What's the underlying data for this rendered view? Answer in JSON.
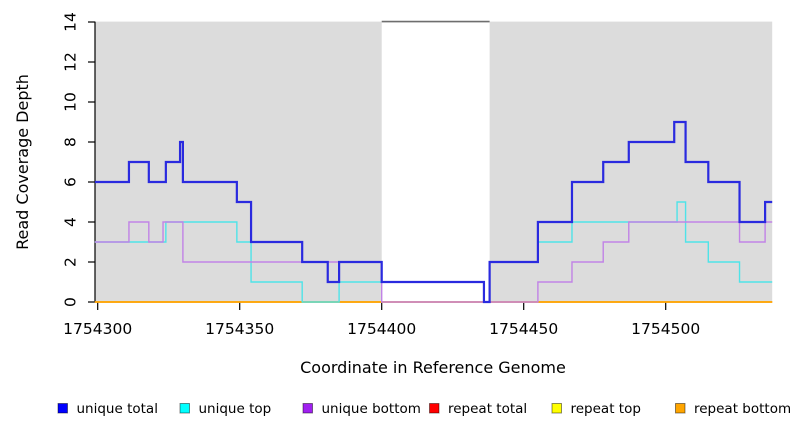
{
  "chart_data": {
    "type": "line",
    "subtype": "step-after-coverage",
    "title": "",
    "xlabel": "Coordinate in Reference Genome",
    "ylabel": "Read Coverage Depth",
    "xlim": [
      1754299,
      1754537.5
    ],
    "ylim": [
      0,
      14
    ],
    "x_ticks": [
      1754300,
      1754350,
      1754400,
      1754450,
      1754500
    ],
    "y_ticks": [
      0,
      2,
      4,
      6,
      8,
      10,
      12,
      14
    ],
    "grid": false,
    "legend_position": "bottom",
    "background_shading": {
      "color": "#dcdcdc",
      "regions": [
        [
          1754299,
          1754400
        ],
        [
          1754438,
          1754537.5
        ]
      ],
      "gap_top_line": {
        "y": 14,
        "from": 1754400,
        "to": 1754438,
        "color": "#6e6e6e"
      }
    },
    "series": [
      {
        "name": "unique total",
        "color": "#0000FF",
        "line_color": "#2a2adf",
        "line_width": 2.2,
        "points": [
          [
            1754299,
            6
          ],
          [
            1754311,
            7
          ],
          [
            1754318,
            6
          ],
          [
            1754324,
            7
          ],
          [
            1754329,
            8
          ],
          [
            1754330,
            6
          ],
          [
            1754349,
            5
          ],
          [
            1754354,
            3
          ],
          [
            1754372,
            2
          ],
          [
            1754381,
            1
          ],
          [
            1754385,
            2
          ],
          [
            1754400,
            1
          ],
          [
            1754436,
            0
          ],
          [
            1754438,
            2
          ],
          [
            1754455,
            4
          ],
          [
            1754467,
            6
          ],
          [
            1754478,
            7
          ],
          [
            1754487,
            8
          ],
          [
            1754503,
            9
          ],
          [
            1754507,
            7
          ],
          [
            1754515,
            6
          ],
          [
            1754526,
            4
          ],
          [
            1754535,
            5
          ]
        ]
      },
      {
        "name": "unique top",
        "color": "#00FFFF",
        "line_color": "#4fe3e8",
        "line_width": 1.4,
        "points": [
          [
            1754299,
            3
          ],
          [
            1754324,
            4
          ],
          [
            1754349,
            3
          ],
          [
            1754354,
            1
          ],
          [
            1754372,
            0
          ],
          [
            1754385,
            1
          ],
          [
            1754436,
            0
          ],
          [
            1754438,
            2
          ],
          [
            1754455,
            3
          ],
          [
            1754467,
            4
          ],
          [
            1754504,
            5
          ],
          [
            1754507,
            3
          ],
          [
            1754515,
            2
          ],
          [
            1754526,
            1
          ]
        ]
      },
      {
        "name": "unique bottom",
        "color": "#A020F0",
        "line_color": "#c183e6",
        "line_width": 1.4,
        "points": [
          [
            1754299,
            3
          ],
          [
            1754311,
            4
          ],
          [
            1754318,
            3
          ],
          [
            1754323,
            4
          ],
          [
            1754330,
            2
          ],
          [
            1754400,
            0
          ],
          [
            1754455,
            1
          ],
          [
            1754467,
            2
          ],
          [
            1754478,
            3
          ],
          [
            1754487,
            4
          ],
          [
            1754526,
            3
          ],
          [
            1754535,
            4
          ]
        ]
      },
      {
        "name": "repeat total",
        "color": "#FF0000",
        "line_color": "#e03a3a",
        "line_width": 1.2,
        "points": [
          [
            1754299,
            0
          ]
        ]
      },
      {
        "name": "repeat top",
        "color": "#FFFF00",
        "line_color": "#f0e438",
        "line_width": 1.2,
        "points": [
          [
            1754299,
            0
          ]
        ]
      },
      {
        "name": "repeat bottom",
        "color": "#FFA500",
        "line_color": "#ffa500",
        "line_width": 1.8,
        "points": [
          [
            1754299,
            0
          ]
        ]
      }
    ],
    "draw_order": [
      "repeat total",
      "repeat top",
      "repeat bottom",
      "unique top",
      "unique bottom",
      "unique total"
    ]
  }
}
